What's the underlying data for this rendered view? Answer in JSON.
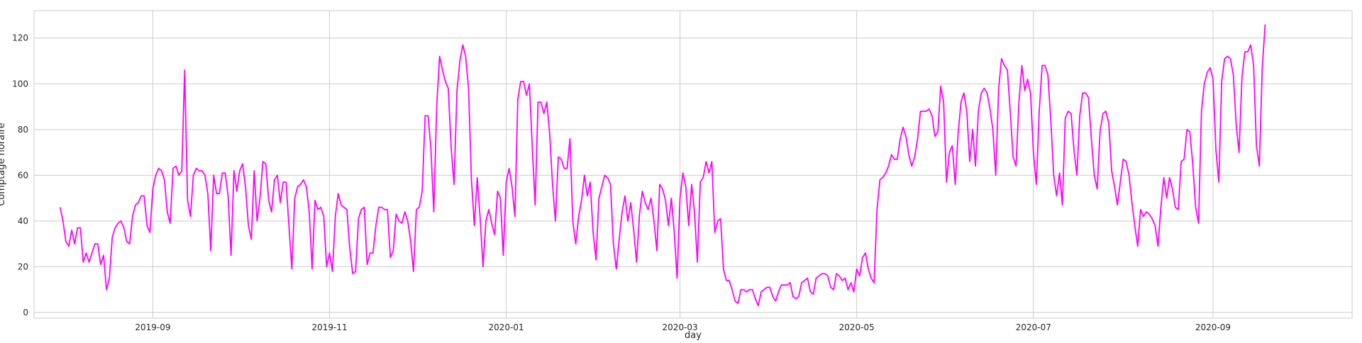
{
  "chart_data": {
    "type": "line",
    "title": "",
    "xlabel": "day",
    "ylabel": "Comptage horaire",
    "x_range": [
      "2019-07-22",
      "2020-10-19"
    ],
    "ylim": [
      -2.5,
      132
    ],
    "grid": true,
    "legend": "none",
    "line_color": "#ff00ff",
    "background_color": "#ffffff",
    "grid_color": "#cccccc",
    "x_ticks": [
      {
        "date": "2019-09-01",
        "label": "2019-09"
      },
      {
        "date": "2019-11-01",
        "label": "2019-11"
      },
      {
        "date": "2020-01-01",
        "label": "2020-01"
      },
      {
        "date": "2020-03-01",
        "label": "2020-03"
      },
      {
        "date": "2020-05-01",
        "label": "2020-05"
      },
      {
        "date": "2020-07-01",
        "label": "2020-07"
      },
      {
        "date": "2020-09-01",
        "label": "2020-09"
      }
    ],
    "y_ticks": [
      0,
      20,
      40,
      60,
      80,
      100,
      120
    ],
    "series": [
      {
        "start_date": "2019-07-31",
        "step_days": 1,
        "values": [
          46,
          40,
          31,
          29,
          36,
          30,
          37,
          37,
          22,
          26,
          22,
          26,
          30,
          30,
          21,
          25,
          10,
          15,
          33,
          37,
          39,
          40,
          37,
          31,
          30,
          42,
          47,
          48,
          51,
          51,
          38,
          35,
          54,
          60,
          63,
          62,
          58,
          44,
          39,
          63,
          64,
          60,
          62,
          106,
          49,
          42,
          60,
          63,
          62,
          62,
          60,
          52,
          27,
          60,
          52,
          52,
          61,
          61,
          51,
          25,
          62,
          53,
          62,
          65,
          55,
          38,
          32,
          62,
          40,
          50,
          66,
          65,
          49,
          44,
          58,
          60,
          48,
          57,
          57,
          38,
          19,
          50,
          55,
          56,
          58,
          55,
          44,
          19,
          49,
          45,
          46,
          42,
          20,
          26,
          18,
          42,
          52,
          47,
          46,
          45,
          28,
          17,
          18,
          41,
          45,
          46,
          21,
          26,
          26,
          38,
          46,
          46,
          45,
          45,
          24,
          27,
          43,
          40,
          39,
          44,
          40,
          31,
          18,
          45,
          46,
          53,
          86,
          86,
          72,
          44,
          90,
          112,
          106,
          101,
          98,
          72,
          56,
          97,
          110,
          117,
          112,
          98,
          58,
          38,
          59,
          41,
          20,
          40,
          45,
          39,
          34,
          53,
          50,
          25,
          57,
          63,
          55,
          42,
          93,
          101,
          101,
          95,
          100,
          72,
          47,
          92,
          92,
          87,
          92,
          78,
          56,
          40,
          68,
          67,
          63,
          63,
          76,
          40,
          30,
          42,
          49,
          60,
          51,
          57,
          35,
          23,
          50,
          55,
          60,
          59,
          56,
          30,
          19,
          32,
          44,
          51,
          40,
          48,
          36,
          22,
          43,
          53,
          48,
          45,
          50,
          40,
          27,
          56,
          54,
          49,
          38,
          50,
          35,
          15,
          50,
          61,
          55,
          38,
          56,
          44,
          22,
          57,
          59,
          66,
          61,
          66,
          35,
          40,
          41,
          19,
          14,
          14,
          10,
          5,
          4,
          10,
          10,
          9,
          10,
          10,
          6,
          3,
          9,
          10,
          11,
          11,
          7,
          5,
          9,
          12,
          12,
          12,
          13,
          7,
          6,
          7,
          13,
          14,
          15,
          9,
          8,
          15,
          16,
          17,
          17,
          16,
          11,
          10,
          17,
          16,
          14,
          15,
          10,
          13,
          9,
          19,
          16,
          24,
          26,
          19,
          15,
          13,
          45,
          58,
          59,
          61,
          64,
          69,
          67,
          67,
          76,
          81,
          77,
          69,
          64,
          68,
          76,
          88,
          88,
          88,
          89,
          86,
          77,
          79,
          99,
          92,
          57,
          70,
          73,
          56,
          78,
          92,
          96,
          88,
          66,
          80,
          64,
          88,
          96,
          98,
          96,
          89,
          80,
          60,
          98,
          111,
          108,
          106,
          88,
          68,
          64,
          92,
          108,
          97,
          102,
          96,
          70,
          56,
          88,
          108,
          108,
          104,
          84,
          60,
          51,
          61,
          47,
          85,
          88,
          87,
          71,
          60,
          86,
          96,
          96,
          94,
          76,
          60,
          54,
          79,
          87,
          88,
          83,
          62,
          55,
          47,
          57,
          67,
          66,
          60,
          48,
          38,
          29,
          45,
          42,
          44,
          43,
          41,
          38,
          29,
          46,
          59,
          50,
          59,
          54,
          46,
          45,
          66,
          67,
          80,
          79,
          65,
          46,
          39,
          88,
          100,
          105,
          107,
          102,
          71,
          57,
          101,
          111,
          112,
          111,
          104,
          82,
          70,
          103,
          114,
          114,
          117,
          108,
          73,
          64,
          107,
          126
        ]
      }
    ]
  }
}
